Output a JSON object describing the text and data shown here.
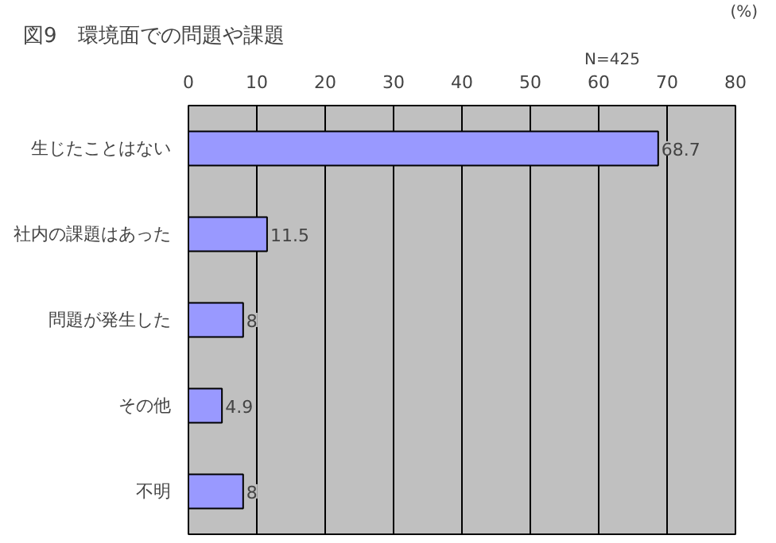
{
  "chart_data": {
    "type": "bar",
    "orientation": "horizontal",
    "title": "図9　環境面での問題や課題",
    "xlabel": "(%)",
    "annotations": [
      "N=425"
    ],
    "categories": [
      "生じたことはない",
      "社内の課題はあった",
      "問題が発生した",
      "その他",
      "不明"
    ],
    "values": [
      68.7,
      11.5,
      8,
      4.9,
      8
    ],
    "color": "#9999ff",
    "data_labels": true,
    "xlim": [
      0,
      80
    ],
    "xticks": [
      0,
      10,
      20,
      30,
      40,
      50,
      60,
      70,
      80
    ],
    "grid": "x"
  }
}
